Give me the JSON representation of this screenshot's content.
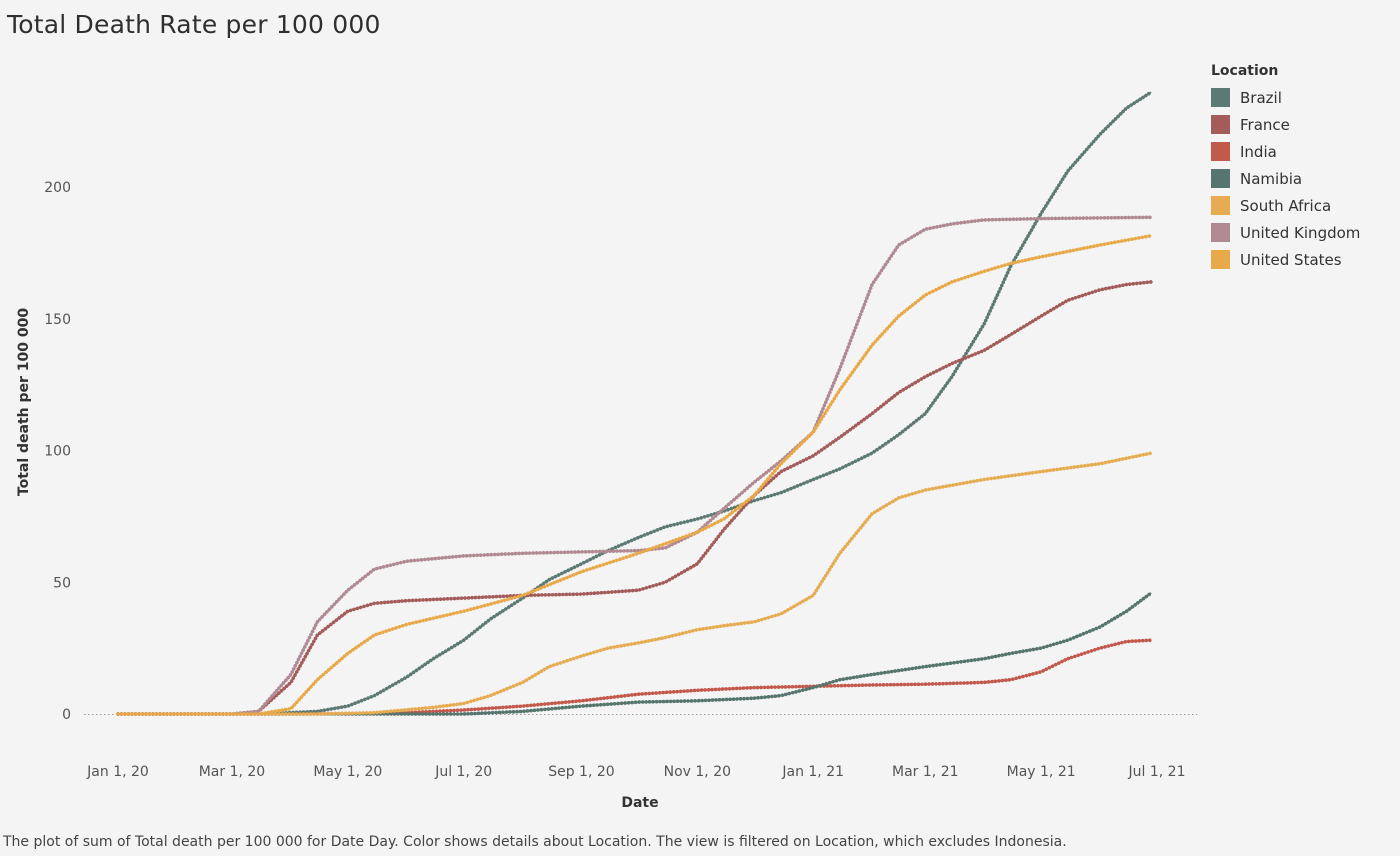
{
  "chart_data": {
    "type": "line",
    "title": "Total Death Rate per 100 000",
    "xlabel": "Date",
    "ylabel": "Total death per 100 000",
    "ylim": [
      0,
      240
    ],
    "yticks": [
      0,
      50,
      100,
      150,
      200
    ],
    "xlim": [
      "2020-01-01",
      "2021-07-01"
    ],
    "xticks": [
      "2020-01-01",
      "2020-03-01",
      "2020-05-01",
      "2020-07-01",
      "2020-09-01",
      "2020-11-01",
      "2021-01-01",
      "2021-03-01",
      "2021-05-01",
      "2021-07-01"
    ],
    "xtick_labels": [
      "Jan 1, 20",
      "Mar 1, 20",
      "May 1, 20",
      "Jul 1, 20",
      "Sep 1, 20",
      "Nov 1, 20",
      "Jan 1, 21",
      "Mar 1, 21",
      "May 1, 21",
      "Jul 1, 21"
    ],
    "grid": false,
    "zero_line": true,
    "legend": {
      "title": "Location",
      "placement": "right"
    },
    "caption": "The plot of sum of Total death per 100 000 for Date Day.  Color shows details about Location. The view is filtered on Location, which excludes Indonesia.",
    "series": [
      {
        "name": "Brazil",
        "color": "#5c7a74",
        "points": [
          [
            "2020-01-01",
            0
          ],
          [
            "2020-03-15",
            0
          ],
          [
            "2020-04-15",
            1
          ],
          [
            "2020-05-01",
            3
          ],
          [
            "2020-05-15",
            7
          ],
          [
            "2020-06-01",
            14
          ],
          [
            "2020-06-15",
            21
          ],
          [
            "2020-07-01",
            28
          ],
          [
            "2020-07-15",
            36
          ],
          [
            "2020-08-01",
            44
          ],
          [
            "2020-08-15",
            51
          ],
          [
            "2020-09-01",
            57
          ],
          [
            "2020-09-15",
            62
          ],
          [
            "2020-10-01",
            67
          ],
          [
            "2020-10-15",
            71
          ],
          [
            "2020-11-01",
            74
          ],
          [
            "2020-11-15",
            77
          ],
          [
            "2020-12-01",
            81
          ],
          [
            "2020-12-15",
            84
          ],
          [
            "2021-01-01",
            89
          ],
          [
            "2021-01-15",
            93
          ],
          [
            "2021-02-01",
            99
          ],
          [
            "2021-02-15",
            106
          ],
          [
            "2021-03-01",
            114
          ],
          [
            "2021-03-15",
            128
          ],
          [
            "2021-04-01",
            148
          ],
          [
            "2021-04-15",
            170
          ],
          [
            "2021-05-01",
            190
          ],
          [
            "2021-05-15",
            206
          ],
          [
            "2021-06-01",
            220
          ],
          [
            "2021-06-15",
            230
          ],
          [
            "2021-06-28",
            236
          ]
        ]
      },
      {
        "name": "France",
        "color": "#a35c5a",
        "points": [
          [
            "2020-01-01",
            0
          ],
          [
            "2020-03-01",
            0
          ],
          [
            "2020-03-15",
            1
          ],
          [
            "2020-04-01",
            12
          ],
          [
            "2020-04-15",
            30
          ],
          [
            "2020-05-01",
            39
          ],
          [
            "2020-05-15",
            42
          ],
          [
            "2020-06-01",
            43
          ],
          [
            "2020-07-01",
            44
          ],
          [
            "2020-08-01",
            45
          ],
          [
            "2020-09-01",
            45.5
          ],
          [
            "2020-10-01",
            47
          ],
          [
            "2020-10-15",
            50
          ],
          [
            "2020-11-01",
            57
          ],
          [
            "2020-11-15",
            70
          ],
          [
            "2020-12-01",
            83
          ],
          [
            "2020-12-15",
            92
          ],
          [
            "2021-01-01",
            98
          ],
          [
            "2021-01-15",
            105
          ],
          [
            "2021-02-01",
            114
          ],
          [
            "2021-02-15",
            122
          ],
          [
            "2021-03-01",
            128
          ],
          [
            "2021-03-15",
            133
          ],
          [
            "2021-04-01",
            138
          ],
          [
            "2021-04-15",
            144
          ],
          [
            "2021-05-01",
            151
          ],
          [
            "2021-05-15",
            157
          ],
          [
            "2021-06-01",
            161
          ],
          [
            "2021-06-15",
            163
          ],
          [
            "2021-06-28",
            164
          ]
        ]
      },
      {
        "name": "India",
        "color": "#c25a4c",
        "points": [
          [
            "2020-01-01",
            0
          ],
          [
            "2020-04-01",
            0
          ],
          [
            "2020-05-01",
            0.2
          ],
          [
            "2020-06-01",
            0.5
          ],
          [
            "2020-07-01",
            1.5
          ],
          [
            "2020-08-01",
            3
          ],
          [
            "2020-09-01",
            5
          ],
          [
            "2020-10-01",
            7.5
          ],
          [
            "2020-11-01",
            9
          ],
          [
            "2020-12-01",
            10
          ],
          [
            "2021-01-01",
            10.5
          ],
          [
            "2021-02-01",
            11
          ],
          [
            "2021-03-01",
            11.3
          ],
          [
            "2021-04-01",
            12
          ],
          [
            "2021-04-15",
            13
          ],
          [
            "2021-05-01",
            16
          ],
          [
            "2021-05-15",
            21
          ],
          [
            "2021-06-01",
            25
          ],
          [
            "2021-06-15",
            27.5
          ],
          [
            "2021-06-28",
            28
          ]
        ]
      },
      {
        "name": "Namibia",
        "color": "#55756e",
        "points": [
          [
            "2020-01-01",
            0
          ],
          [
            "2020-07-01",
            0
          ],
          [
            "2020-08-01",
            1
          ],
          [
            "2020-09-01",
            3
          ],
          [
            "2020-10-01",
            4.5
          ],
          [
            "2020-11-01",
            5
          ],
          [
            "2020-12-01",
            6
          ],
          [
            "2020-12-15",
            7
          ],
          [
            "2021-01-01",
            10
          ],
          [
            "2021-01-15",
            13
          ],
          [
            "2021-02-01",
            15
          ],
          [
            "2021-03-01",
            18
          ],
          [
            "2021-04-01",
            21
          ],
          [
            "2021-04-15",
            23
          ],
          [
            "2021-05-01",
            25
          ],
          [
            "2021-05-15",
            28
          ],
          [
            "2021-06-01",
            33
          ],
          [
            "2021-06-15",
            39
          ],
          [
            "2021-06-28",
            46
          ]
        ]
      },
      {
        "name": "South Africa",
        "color": "#e6ac52",
        "points": [
          [
            "2020-01-01",
            0
          ],
          [
            "2020-04-15",
            0
          ],
          [
            "2020-05-15",
            0.5
          ],
          [
            "2020-06-15",
            2.5
          ],
          [
            "2020-07-01",
            4
          ],
          [
            "2020-07-15",
            7
          ],
          [
            "2020-08-01",
            12
          ],
          [
            "2020-08-15",
            18
          ],
          [
            "2020-09-01",
            22
          ],
          [
            "2020-09-15",
            25
          ],
          [
            "2020-10-01",
            27
          ],
          [
            "2020-10-15",
            29
          ],
          [
            "2020-11-01",
            32
          ],
          [
            "2020-11-15",
            33.5
          ],
          [
            "2020-12-01",
            35
          ],
          [
            "2020-12-15",
            38
          ],
          [
            "2021-01-01",
            45
          ],
          [
            "2021-01-15",
            61
          ],
          [
            "2021-02-01",
            76
          ],
          [
            "2021-02-15",
            82
          ],
          [
            "2021-03-01",
            85
          ],
          [
            "2021-04-01",
            89
          ],
          [
            "2021-05-01",
            92
          ],
          [
            "2021-06-01",
            95
          ],
          [
            "2021-06-28",
            99
          ]
        ]
      },
      {
        "name": "United Kingdom",
        "color": "#b08a92",
        "points": [
          [
            "2020-01-01",
            0
          ],
          [
            "2020-03-01",
            0
          ],
          [
            "2020-03-15",
            1
          ],
          [
            "2020-04-01",
            15
          ],
          [
            "2020-04-15",
            35
          ],
          [
            "2020-05-01",
            47
          ],
          [
            "2020-05-15",
            55
          ],
          [
            "2020-06-01",
            58
          ],
          [
            "2020-07-01",
            60
          ],
          [
            "2020-08-01",
            61
          ],
          [
            "2020-09-01",
            61.5
          ],
          [
            "2020-10-01",
            62
          ],
          [
            "2020-10-15",
            63
          ],
          [
            "2020-11-01",
            69
          ],
          [
            "2020-11-15",
            78
          ],
          [
            "2020-12-01",
            88
          ],
          [
            "2020-12-15",
            96
          ],
          [
            "2021-01-01",
            107
          ],
          [
            "2021-01-15",
            131
          ],
          [
            "2021-02-01",
            163
          ],
          [
            "2021-02-15",
            178
          ],
          [
            "2021-03-01",
            184
          ],
          [
            "2021-03-15",
            186
          ],
          [
            "2021-04-01",
            187.5
          ],
          [
            "2021-05-01",
            188
          ],
          [
            "2021-06-28",
            188.5
          ]
        ]
      },
      {
        "name": "United States",
        "color": "#e8a94a",
        "points": [
          [
            "2020-01-01",
            0
          ],
          [
            "2020-03-15",
            0
          ],
          [
            "2020-04-01",
            2
          ],
          [
            "2020-04-15",
            13
          ],
          [
            "2020-05-01",
            23
          ],
          [
            "2020-05-15",
            30
          ],
          [
            "2020-06-01",
            34
          ],
          [
            "2020-07-01",
            39
          ],
          [
            "2020-08-01",
            45
          ],
          [
            "2020-09-01",
            54
          ],
          [
            "2020-10-01",
            61
          ],
          [
            "2020-11-01",
            69
          ],
          [
            "2020-11-15",
            74
          ],
          [
            "2020-12-01",
            83
          ],
          [
            "2020-12-15",
            95
          ],
          [
            "2021-01-01",
            107
          ],
          [
            "2021-01-15",
            123
          ],
          [
            "2021-02-01",
            140
          ],
          [
            "2021-02-15",
            151
          ],
          [
            "2021-03-01",
            159
          ],
          [
            "2021-03-15",
            164
          ],
          [
            "2021-04-01",
            168
          ],
          [
            "2021-04-15",
            171
          ],
          [
            "2021-05-01",
            173.5
          ],
          [
            "2021-06-01",
            178
          ],
          [
            "2021-06-28",
            181.5
          ]
        ]
      }
    ]
  }
}
